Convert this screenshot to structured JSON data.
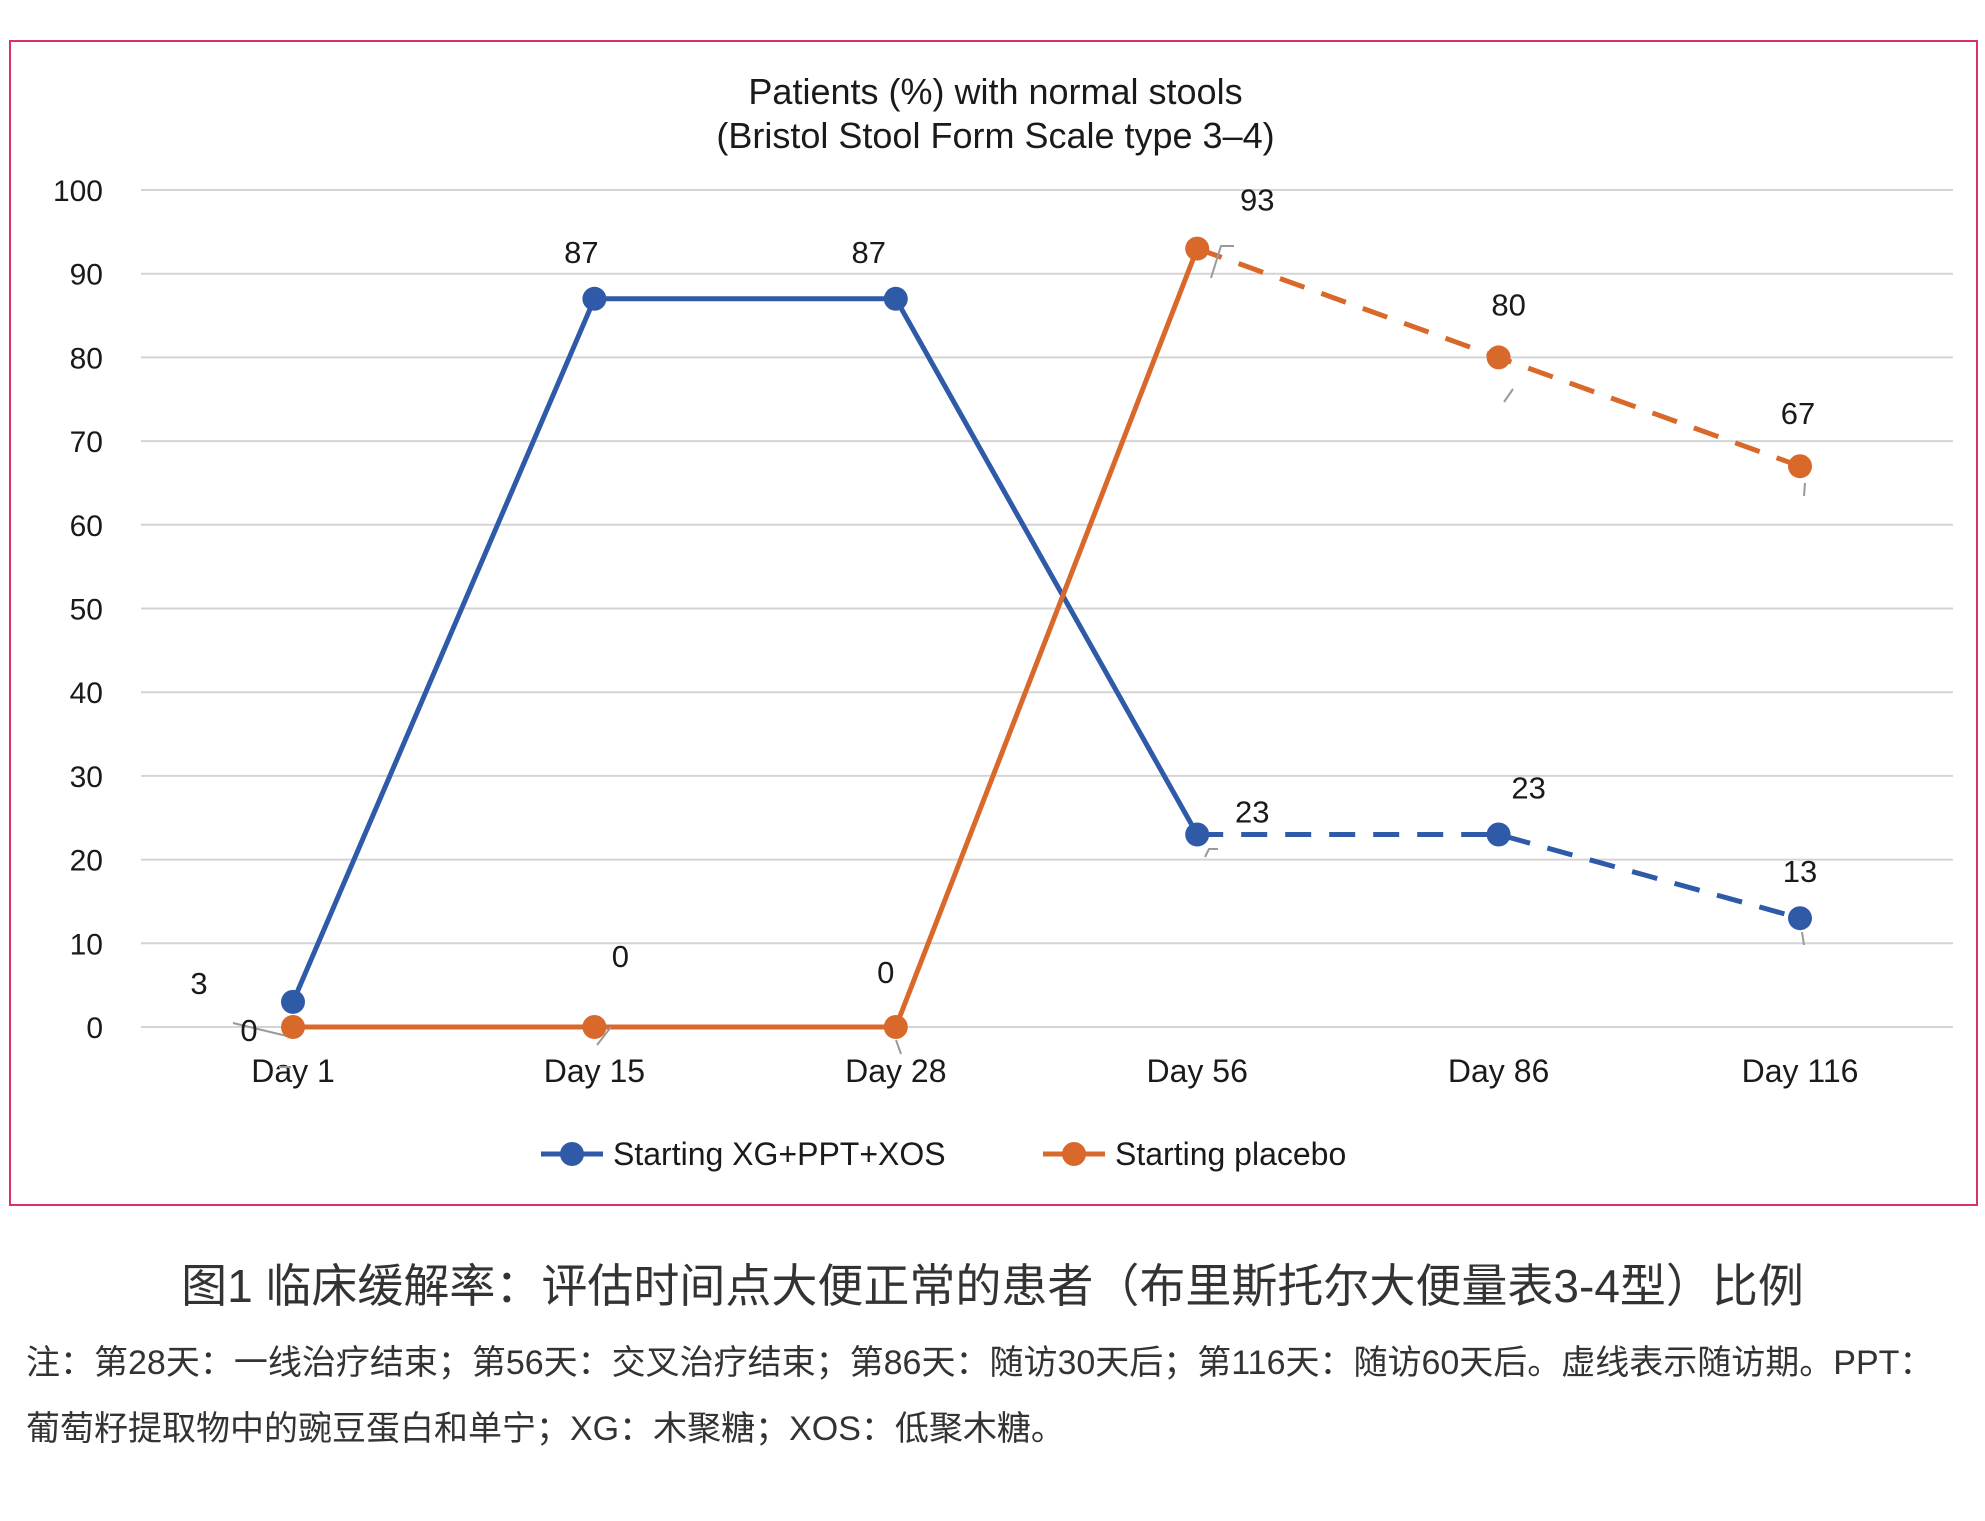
{
  "chart_data": {
    "type": "line",
    "title": "Patients (%) with normal stools",
    "subtitle": "(Bristol Stool Form Scale type 3–4)",
    "categories": [
      "Day 1",
      "Day 15",
      "Day 28",
      "Day 56",
      "Day 86",
      "Day 116"
    ],
    "ylim": [
      0,
      100
    ],
    "yticks": [
      "0",
      "10",
      "20",
      "30",
      "40",
      "50",
      "60",
      "70",
      "80",
      "90",
      "100"
    ],
    "grid": true,
    "legend_position": "bottom",
    "series": [
      {
        "name": "Starting XG+PPT+XOS",
        "color": "#2e5aa8",
        "values": [
          3,
          87,
          87,
          23,
          23,
          13
        ],
        "labels": [
          "3",
          "87",
          "87",
          "23",
          "23",
          "13"
        ],
        "dashed_from_index": 3
      },
      {
        "name": "Starting placebo",
        "color": "#d9692a",
        "values": [
          0,
          0,
          0,
          93,
          80,
          67
        ],
        "labels": [
          "0",
          "0",
          "0",
          "93",
          "80",
          "67"
        ],
        "dashed_from_index": 3
      }
    ]
  },
  "caption": {
    "title": "图1 临床缓解率：评估时间点大便正常的患者（布里斯托尔大便量表3-4型）比例",
    "note": "注：第28天：一线治疗结束；第56天：交叉治疗结束；第86天：随访30天后；第116天：随访60天后。虚线表示随访期。PPT：葡萄籽提取物中的豌豆蛋白和单宁；XG：木聚糖；XOS：低聚木糖。"
  }
}
